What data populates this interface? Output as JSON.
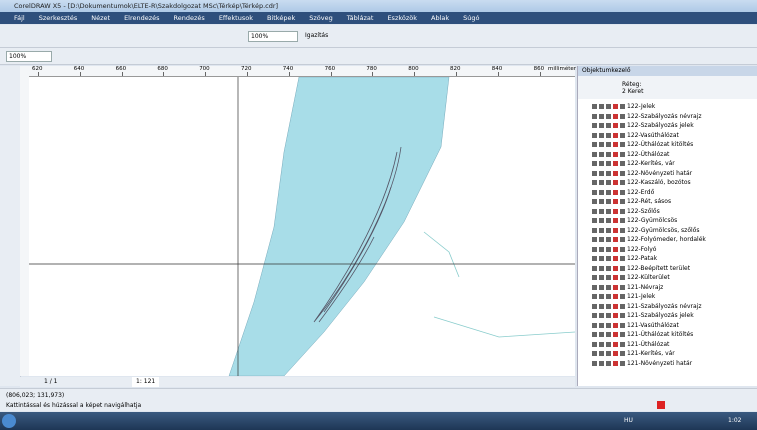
{
  "window": {
    "title": "CorelDRAW X5 - [D:\\Dokumentumok\\ELTE-R\\Szakdolgozat MSc\\Térkép\\Térkép.cdr]"
  },
  "menu": [
    "Fájl",
    "Szerkesztés",
    "Nézet",
    "Elrendezés",
    "Rendezés",
    "Effektusok",
    "Bitképek",
    "Szöveg",
    "Táblázat",
    "Eszközök",
    "Ablak",
    "Súgó"
  ],
  "toolbar": {
    "zoom": "100%",
    "align": "Igazítás"
  },
  "propbar": {
    "zoom": "100%"
  },
  "ruler": {
    "labels": [
      "620",
      "640",
      "660",
      "680",
      "700",
      "720",
      "740",
      "760",
      "780",
      "800",
      "820",
      "840",
      "860"
    ],
    "unit": "milliméter"
  },
  "docker": {
    "title": "Objektumkezelő",
    "layer_label": "Réteg:",
    "layer_value": "2 Keret",
    "layers": [
      "122-Jelek",
      "122-Szabályozás névrajz",
      "122-Szabályozás jelek",
      "122-Vasúthálózat",
      "122-Úthálózat kitöltés",
      "122-Úthálózat",
      "122-Kerítés, vár",
      "122-Növényzeti határ",
      "122-Kaszáló, bozótos",
      "122-Erdő",
      "122-Rét, sásos",
      "122-Szőlős",
      "122-Gyümölcsös",
      "122-Gyümölcsös, szőlős",
      "122-Folyómeder, hordalék",
      "122-Folyó",
      "122-Patak",
      "122-Beépített terület",
      "122-Külterület",
      "121-Névrajz",
      "121-Jelek",
      "121-Szabályozás névrajz",
      "121-Szabályozás jelek",
      "121-Vasúthálózat",
      "121-Úthálózat kitöltés",
      "121-Úthálózat",
      "121-Kerítés, vár",
      "121-Növényzeti határ"
    ]
  },
  "page_nav": {
    "count": "1 / 1",
    "tab": "1: 121"
  },
  "status": {
    "coords": "(806,023; 131,973)",
    "hint": "Kattintással és húzással a képet navigálhatja"
  },
  "taskbar": {
    "lang": "HU",
    "time": "1:02"
  }
}
